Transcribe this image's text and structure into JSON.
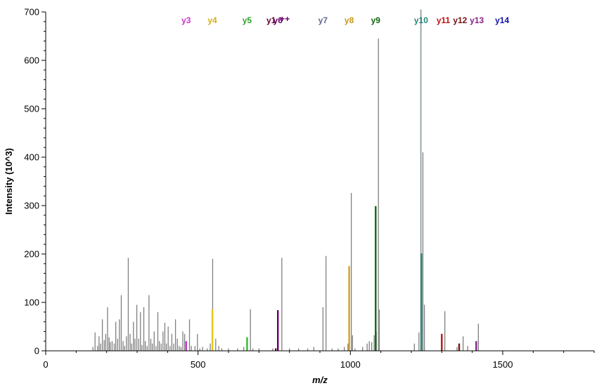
{
  "chart_data": {
    "type": "bar",
    "title": "",
    "xlabel": "m/z",
    "ylabel": "Intensity (10^3)",
    "xlim": [
      0,
      1800
    ],
    "ylim": [
      0,
      700
    ],
    "x_ticks": [
      0,
      500,
      1000,
      1500
    ],
    "y_ticks": [
      0,
      100,
      200,
      300,
      400,
      500,
      600,
      700
    ],
    "grid": false,
    "legend": "none",
    "unassigned_peaks": {
      "name": "",
      "color": "#808080",
      "mz": [
        155,
        162,
        170,
        175,
        180,
        186,
        192,
        197,
        203,
        208,
        212,
        218,
        225,
        230,
        236,
        242,
        248,
        254,
        259,
        265,
        271,
        277,
        282,
        288,
        293,
        299,
        305,
        311,
        316,
        322,
        327,
        333,
        339,
        345,
        350,
        356,
        362,
        368,
        373,
        379,
        385,
        391,
        396,
        402,
        408,
        414,
        420,
        426,
        432,
        438,
        444,
        450,
        456,
        472,
        478,
        490,
        498,
        506,
        515,
        530,
        540,
        548,
        558,
        568,
        578,
        600,
        630,
        650,
        672,
        680,
        700,
        745,
        775,
        800,
        830,
        860,
        880,
        910,
        920,
        940,
        960,
        980,
        992,
        1003,
        1007,
        1015,
        1040,
        1055,
        1062,
        1070,
        1078,
        1085,
        1092,
        1095,
        1210,
        1225,
        1231,
        1238,
        1243,
        1310,
        1350,
        1370,
        1385,
        1420
      ],
      "intensity": [
        8,
        38,
        10,
        30,
        15,
        65,
        22,
        35,
        90,
        28,
        18,
        20,
        15,
        60,
        25,
        65,
        115,
        20,
        10,
        30,
        192,
        35,
        15,
        60,
        25,
        95,
        25,
        80,
        12,
        90,
        20,
        10,
        115,
        25,
        15,
        40,
        10,
        80,
        20,
        15,
        40,
        58,
        15,
        50,
        10,
        35,
        15,
        65,
        25,
        10,
        8,
        40,
        35,
        65,
        10,
        10,
        35,
        5,
        8,
        5,
        15,
        190,
        25,
        10,
        5,
        5,
        5,
        8,
        86,
        5,
        5,
        5,
        192,
        5,
        5,
        5,
        8,
        90,
        196,
        5,
        5,
        8,
        15,
        326,
        32,
        5,
        8,
        15,
        20,
        18,
        32,
        40,
        645,
        85,
        15,
        38,
        705,
        410,
        95,
        82,
        8,
        30,
        10,
        56
      ]
    },
    "series": [
      {
        "name": "y3",
        "color": "#cc33cc",
        "mz": [
          461
        ],
        "intensity": [
          20
        ]
      },
      {
        "name": "y4",
        "color": "#e6c619",
        "mz": [
          547
        ],
        "intensity": [
          86
        ]
      },
      {
        "name": "y5",
        "color": "#33bb33",
        "mz": [
          661
        ],
        "intensity": [
          28
        ]
      },
      {
        "name": "y1",
        "color": "#660033",
        "mz": [
          755
        ],
        "intensity": [
          5
        ]
      },
      {
        "name": "y6",
        "color": "#660066",
        "mz": [
          762
        ],
        "intensity": [
          84
        ]
      },
      {
        "name": "y7",
        "color": "#666699",
        "mz": [
          910
        ],
        "intensity": [
          0
        ]
      },
      {
        "name": "y8",
        "color": "#d4a020",
        "mz": [
          996
        ],
        "intensity": [
          175
        ]
      },
      {
        "name": "y9",
        "color": "#116611",
        "mz": [
          1083
        ],
        "intensity": [
          299
        ]
      },
      {
        "name": "y10",
        "color": "#228877",
        "mz": [
          1233
        ],
        "intensity": [
          201
        ]
      },
      {
        "name": "y11",
        "color": "#bb1111",
        "mz": [
          1300
        ],
        "intensity": [
          35
        ]
      },
      {
        "name": "y12",
        "color": "#771111",
        "mz": [
          1357
        ],
        "intensity": [
          15
        ]
      },
      {
        "name": "y13",
        "color": "#882288",
        "mz": [
          1413
        ],
        "intensity": [
          20
        ]
      },
      {
        "name": "y14",
        "color": "#1111aa",
        "mz": [
          1492
        ],
        "intensity": [
          0
        ]
      }
    ],
    "labels": [
      {
        "text": "y3",
        "color": "#cc33cc",
        "mz": 461
      },
      {
        "text": "y4",
        "color": "#d4b010",
        "mz": 547
      },
      {
        "text": "y5",
        "color": "#2e9e2e",
        "mz": 661
      },
      {
        "text": "y1",
        "color": "#660033",
        "mz": 740
      },
      {
        "text": "y6",
        "color": "#660066",
        "mz": 762
      },
      {
        "text": "++",
        "color": "#660066",
        "mz": 785
      },
      {
        "text": "y7",
        "color": "#666699",
        "mz": 910
      },
      {
        "text": "y8",
        "color": "#c8961a",
        "mz": 996
      },
      {
        "text": "y9",
        "color": "#116611",
        "mz": 1083
      },
      {
        "text": "y10",
        "color": "#228877",
        "mz": 1232
      },
      {
        "text": "y11",
        "color": "#bb1111",
        "mz": 1305
      },
      {
        "text": "y12",
        "color": "#771111",
        "mz": 1360
      },
      {
        "text": "y13",
        "color": "#882288",
        "mz": 1415
      },
      {
        "text": "y14",
        "color": "#1111aa",
        "mz": 1498
      }
    ],
    "highlight_peak": {
      "color": "#a9d7e6",
      "mz": 1233,
      "intensity": 705
    }
  }
}
